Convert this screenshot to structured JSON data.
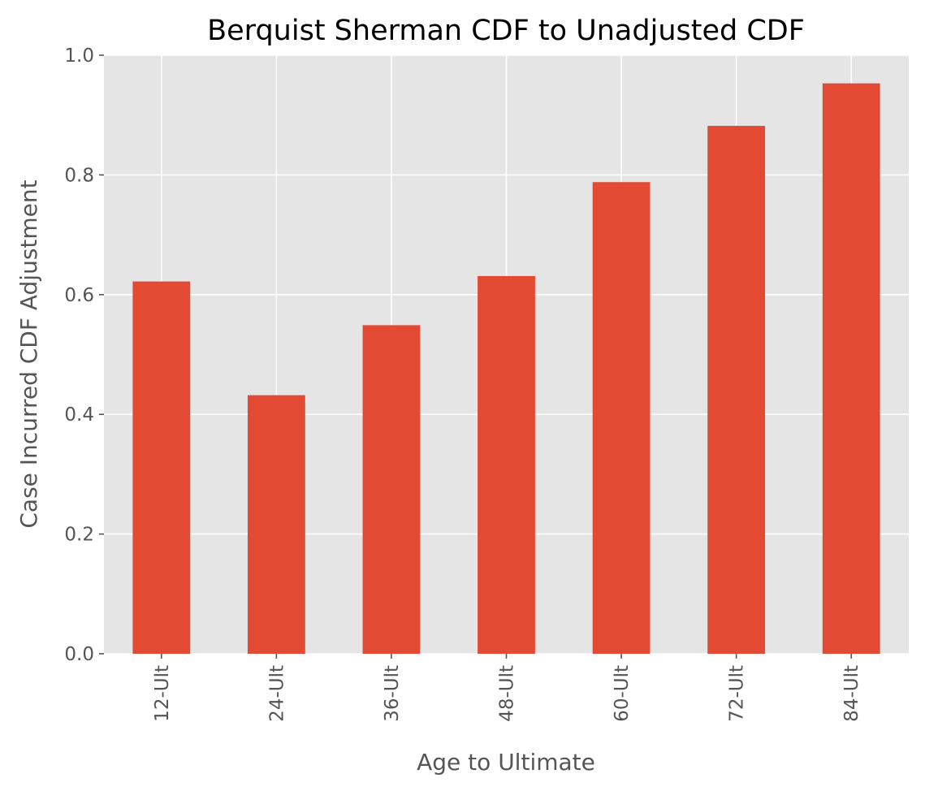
{
  "chart_data": {
    "type": "bar",
    "title": "Berquist Sherman CDF to Unadjusted CDF",
    "xlabel": "Age to Ultimate",
    "ylabel": "Case Incurred CDF Adjustment",
    "categories": [
      "12-Ult",
      "24-Ult",
      "36-Ult",
      "48-Ult",
      "60-Ult",
      "72-Ult",
      "84-Ult"
    ],
    "values": [
      0.622,
      0.432,
      0.549,
      0.631,
      0.788,
      0.882,
      0.953
    ],
    "ylim": [
      0,
      1.0
    ],
    "yticks": [
      "0.0",
      "0.2",
      "0.4",
      "0.6",
      "0.8",
      "1.0"
    ],
    "grid": true,
    "legend": "none",
    "colors": {
      "bar": "#E24A33",
      "plot_background": "#E5E5E5",
      "grid": "#FFFFFF",
      "text": "#555555",
      "title": "#000000"
    }
  }
}
